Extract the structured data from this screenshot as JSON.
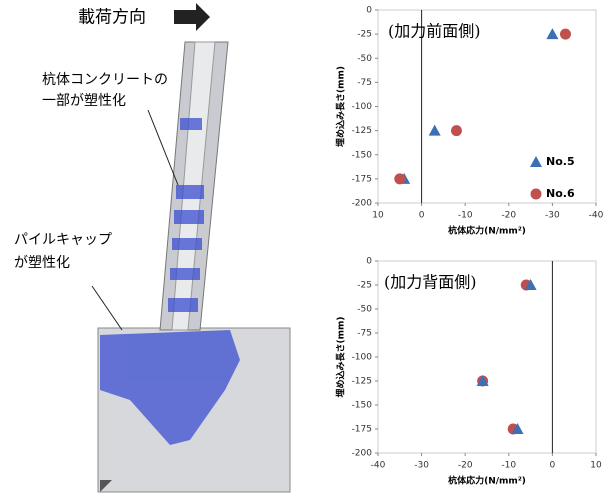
{
  "figure": {
    "load_label": "載荷方向",
    "note1": [
      "杭体コンクリートの",
      "一部が塑性化"
    ],
    "note2": [
      "パイルキャップ",
      "が塑性化"
    ]
  },
  "chart_data": [
    {
      "type": "scatter",
      "annotation": "(加力前面側)",
      "x_label": "杭体応力(N/mm²)",
      "y_label": "埋め込み長さ(mm)",
      "xlim": [
        10,
        -40
      ],
      "xticks": [
        10,
        0,
        -10,
        -20,
        -30,
        -40
      ],
      "ylim": [
        -200,
        0
      ],
      "yticks": [
        0,
        -25,
        -50,
        -75,
        -100,
        -125,
        -150,
        -175,
        -200
      ],
      "legend": "lower right",
      "series": [
        {
          "name": "No.5",
          "color": "#3d6fb5",
          "marker": "triangle",
          "x": [
            -30,
            -3,
            4
          ],
          "values": [
            -25,
            -125,
            -175
          ]
        },
        {
          "name": "No.6",
          "color": "#c0504d",
          "marker": "circle",
          "x": [
            -33,
            -8,
            5
          ],
          "values": [
            -25,
            -125,
            -175
          ]
        }
      ]
    },
    {
      "type": "scatter",
      "annotation": "(加力背面側)",
      "x_label": "杭体応力(N/mm²)",
      "y_label": "埋め込み長さ(mm)",
      "xlim": [
        -40,
        10
      ],
      "xticks": [
        -40,
        -30,
        -20,
        -10,
        0,
        10
      ],
      "ylim": [
        -200,
        0
      ],
      "yticks": [
        0,
        -25,
        -50,
        -75,
        -100,
        -125,
        -150,
        -175,
        -200
      ],
      "series": [
        {
          "color": "#c0504d",
          "marker": "circle",
          "x": [
            -6,
            -16,
            -9
          ],
          "values": [
            -25,
            -125,
            -175
          ]
        },
        {
          "color": "#3d6fb5",
          "marker": "triangle",
          "x": [
            -5,
            -16,
            -8
          ],
          "values": [
            -25,
            -125,
            -175
          ]
        }
      ]
    }
  ]
}
